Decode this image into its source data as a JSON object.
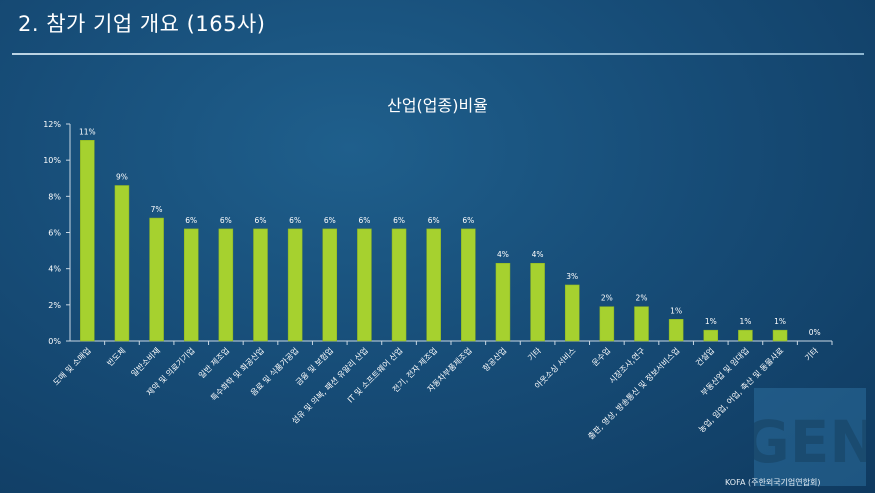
{
  "slide": {
    "title": "2. 참가 기업 개요 (165사)",
    "source": "KOFA (주한외국기업연합회)",
    "logo_text": "GEN"
  },
  "colors": {
    "bar": "#a6d12f",
    "bar_edge": "#8fb522",
    "axis": "#c9d7e3",
    "text": "#ffffff"
  },
  "chart_data": {
    "type": "bar",
    "title": "산업(업종)비율",
    "xlabel": "",
    "ylabel": "",
    "ylim": [
      0,
      12
    ],
    "yticks": [
      0,
      2,
      4,
      6,
      8,
      10,
      12
    ],
    "ytick_labels": [
      "0%",
      "2%",
      "4%",
      "6%",
      "8%",
      "10%",
      "12%"
    ],
    "grid": false,
    "legend": "none",
    "categories": [
      "도매 및 소매업",
      "반도체",
      "일반소비재",
      "제약 및 의료기기업",
      "일반 제조업",
      "특수화학 및 화공산업",
      "음료 및 식품가공업",
      "금융 및 보험업",
      "섬유 및 의복, 패션 유알리 산업",
      "IT 및 소프트웨어 산업",
      "전기, 전자 제조업",
      "자동차부품제조업",
      "항공산업",
      "기타",
      "아웃소싱 서비스",
      "운수업",
      "시장조사,연구",
      "출판, 영상, 방송통신 및 정보서비스업",
      "건설업",
      "부동산업 및 임대업",
      "농업, 임업, 어업, 축산 및 동물사료",
      "기타"
    ],
    "values": [
      11.1,
      8.6,
      6.8,
      6.2,
      6.2,
      6.2,
      6.2,
      6.2,
      6.2,
      6.2,
      6.2,
      6.2,
      4.3,
      4.3,
      3.1,
      1.9,
      1.9,
      1.2,
      0.6,
      0.6,
      0.6,
      0.0
    ],
    "data_labels": [
      "11%",
      "9%",
      "7%",
      "6%",
      "6%",
      "6%",
      "6%",
      "6%",
      "6%",
      "6%",
      "6%",
      "6%",
      "4%",
      "4%",
      "3%",
      "2%",
      "2%",
      "1%",
      "1%",
      "1%",
      "1%",
      "0%"
    ]
  }
}
